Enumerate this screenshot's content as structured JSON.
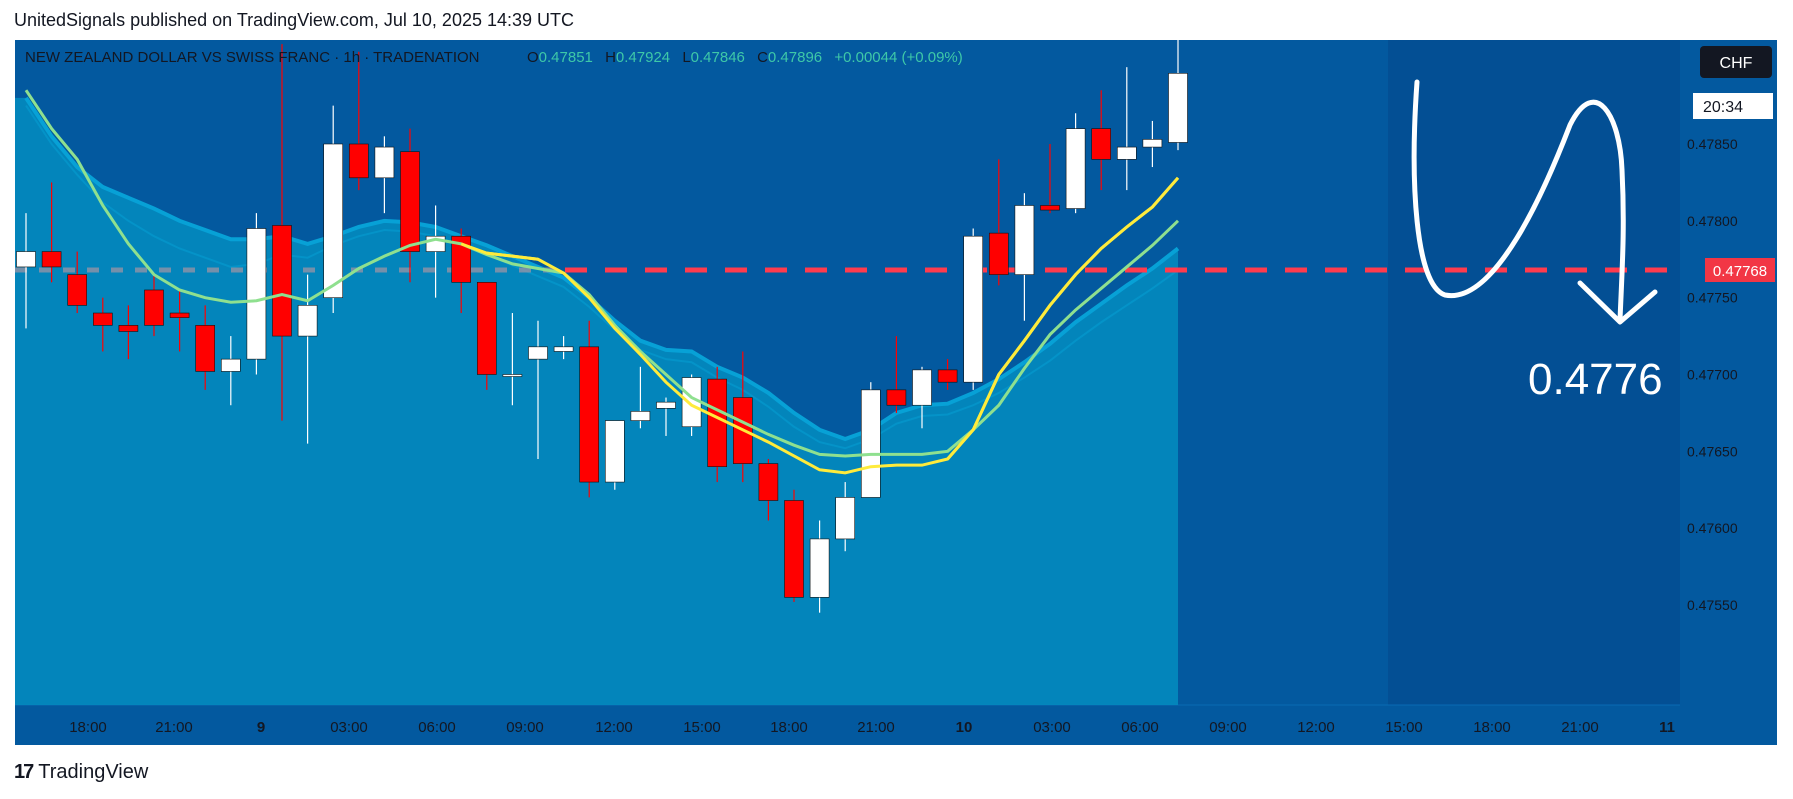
{
  "header": {
    "published": "UnitedSignals published on TradingView.com, Jul 10, 2025 14:39 UTC"
  },
  "footer": {
    "logo_mark": "17",
    "logo_text": "TradingView"
  },
  "legend": {
    "symbol": "NEW ZEALAND DOLLAR VS SWISS FRANC · 1h · TRADENATION",
    "o_label": "O",
    "o_value": "0.47851",
    "h_label": "H",
    "h_value": "0.47924",
    "l_label": "L",
    "l_value": "0.47846",
    "c_label": "C",
    "c_value": "0.47896",
    "change": "+0.00044 (+0.09%)"
  },
  "price_axis": {
    "currency": "CHF",
    "countdown": "20:34",
    "current_price_label": "0.47768"
  },
  "annotation": {
    "target_label": "0.4776"
  },
  "colors": {
    "background": "#03599f",
    "up_candle": "#ffffff",
    "down_candle": "#ff0000",
    "ma_fast": "#ffeb3b",
    "ma_slow": "#8fe08f",
    "band_fill": "#0388bd",
    "level_line": "#ff3b4e"
  },
  "chart_data": {
    "type": "candlestick",
    "interval": "1h",
    "ylim": [
      0.4753,
      0.4792
    ],
    "y_ticks": [
      "0.47850",
      "0.47800",
      "0.47750",
      "0.47700",
      "0.47650",
      "0.47600",
      "0.47550"
    ],
    "x_ticks": [
      "18:00",
      "21:00",
      "9",
      "03:00",
      "06:00",
      "09:00",
      "12:00",
      "15:00",
      "18:00",
      "21:00",
      "10",
      "03:00",
      "06:00",
      "09:00",
      "12:00",
      "15:00",
      "18:00",
      "21:00",
      "11"
    ],
    "horizontal_level": 0.47768,
    "candles": [
      {
        "o": 0.4777,
        "h": 0.47805,
        "l": 0.4773,
        "c": 0.4778
      },
      {
        "o": 0.4778,
        "h": 0.47825,
        "l": 0.4776,
        "c": 0.4777
      },
      {
        "o": 0.47765,
        "h": 0.4778,
        "l": 0.4774,
        "c": 0.47745
      },
      {
        "o": 0.4774,
        "h": 0.4775,
        "l": 0.47715,
        "c": 0.47732
      },
      {
        "o": 0.47732,
        "h": 0.47745,
        "l": 0.4771,
        "c": 0.47728
      },
      {
        "o": 0.47755,
        "h": 0.47765,
        "l": 0.47725,
        "c": 0.47732
      },
      {
        "o": 0.4774,
        "h": 0.47755,
        "l": 0.47715,
        "c": 0.47737
      },
      {
        "o": 0.47732,
        "h": 0.47745,
        "l": 0.4769,
        "c": 0.47702
      },
      {
        "o": 0.47702,
        "h": 0.47725,
        "l": 0.4768,
        "c": 0.4771
      },
      {
        "o": 0.4771,
        "h": 0.47805,
        "l": 0.477,
        "c": 0.47795
      },
      {
        "o": 0.47797,
        "h": 0.47915,
        "l": 0.4767,
        "c": 0.47725
      },
      {
        "o": 0.47725,
        "h": 0.47765,
        "l": 0.47655,
        "c": 0.47745
      },
      {
        "o": 0.4775,
        "h": 0.47875,
        "l": 0.4774,
        "c": 0.4785
      },
      {
        "o": 0.4785,
        "h": 0.4791,
        "l": 0.4782,
        "c": 0.47828
      },
      {
        "o": 0.47828,
        "h": 0.47855,
        "l": 0.47805,
        "c": 0.47848
      },
      {
        "o": 0.47845,
        "h": 0.4786,
        "l": 0.4776,
        "c": 0.4778
      },
      {
        "o": 0.4778,
        "h": 0.4781,
        "l": 0.4775,
        "c": 0.4779
      },
      {
        "o": 0.4779,
        "h": 0.47795,
        "l": 0.4774,
        "c": 0.4776
      },
      {
        "o": 0.4776,
        "h": 0.4776,
        "l": 0.4769,
        "c": 0.477
      },
      {
        "o": 0.477,
        "h": 0.4774,
        "l": 0.4768,
        "c": 0.477
      },
      {
        "o": 0.4771,
        "h": 0.47735,
        "l": 0.47645,
        "c": 0.47718
      },
      {
        "o": 0.47715,
        "h": 0.47725,
        "l": 0.4771,
        "c": 0.47718
      },
      {
        "o": 0.47718,
        "h": 0.47735,
        "l": 0.4762,
        "c": 0.4763
      },
      {
        "o": 0.4763,
        "h": 0.4767,
        "l": 0.47625,
        "c": 0.4767
      },
      {
        "o": 0.4767,
        "h": 0.47705,
        "l": 0.47665,
        "c": 0.47676
      },
      {
        "o": 0.47678,
        "h": 0.47685,
        "l": 0.4766,
        "c": 0.47682
      },
      {
        "o": 0.47666,
        "h": 0.477,
        "l": 0.4766,
        "c": 0.47698
      },
      {
        "o": 0.47697,
        "h": 0.47705,
        "l": 0.4763,
        "c": 0.4764
      },
      {
        "o": 0.47685,
        "h": 0.47715,
        "l": 0.4763,
        "c": 0.47642
      },
      {
        "o": 0.47642,
        "h": 0.47645,
        "l": 0.47605,
        "c": 0.47618
      },
      {
        "o": 0.47618,
        "h": 0.47625,
        "l": 0.47552,
        "c": 0.47555
      },
      {
        "o": 0.47555,
        "h": 0.47605,
        "l": 0.47545,
        "c": 0.47593
      },
      {
        "o": 0.47593,
        "h": 0.4763,
        "l": 0.47585,
        "c": 0.4762
      },
      {
        "o": 0.4762,
        "h": 0.47695,
        "l": 0.4762,
        "c": 0.4769
      },
      {
        "o": 0.4769,
        "h": 0.47725,
        "l": 0.47675,
        "c": 0.4768
      },
      {
        "o": 0.4768,
        "h": 0.47705,
        "l": 0.47665,
        "c": 0.47703
      },
      {
        "o": 0.47703,
        "h": 0.4771,
        "l": 0.4769,
        "c": 0.47695
      },
      {
        "o": 0.47695,
        "h": 0.47795,
        "l": 0.4769,
        "c": 0.4779
      },
      {
        "o": 0.47792,
        "h": 0.4784,
        "l": 0.47758,
        "c": 0.47765
      },
      {
        "o": 0.47765,
        "h": 0.47818,
        "l": 0.47735,
        "c": 0.4781
      },
      {
        "o": 0.4781,
        "h": 0.4785,
        "l": 0.47805,
        "c": 0.47807
      },
      {
        "o": 0.47808,
        "h": 0.4787,
        "l": 0.47805,
        "c": 0.4786
      },
      {
        "o": 0.4786,
        "h": 0.47885,
        "l": 0.4782,
        "c": 0.4784
      },
      {
        "o": 0.4784,
        "h": 0.479,
        "l": 0.4782,
        "c": 0.47848
      },
      {
        "o": 0.47848,
        "h": 0.47865,
        "l": 0.47835,
        "c": 0.47853
      },
      {
        "o": 0.47851,
        "h": 0.47924,
        "l": 0.47846,
        "c": 0.47896
      }
    ],
    "ma_fast": [
      0.47886,
      0.4787,
      0.47852,
      0.47824,
      0.47797,
      0.47772,
      0.47757,
      0.47751,
      0.47748,
      0.47749,
      0.47752,
      0.47748,
      0.47758,
      0.47769,
      0.47777,
      0.47784,
      0.47788,
      0.47785,
      0.47779,
      0.47777,
      0.47775,
      0.47766,
      0.4775,
      0.4773,
      0.47713,
      0.47695,
      0.4768,
      0.47672,
      0.47664,
      0.47656,
      0.47647,
      0.47638,
      0.47636,
      0.4764,
      0.47641,
      0.47641,
      0.47645,
      0.47664,
      0.477,
      0.47722,
      0.47745,
      0.47765,
      0.47782,
      0.47796,
      0.47809,
      0.47828
    ],
    "ma_slow": [
      0.47885,
      0.4786,
      0.4784,
      0.4781,
      0.47785,
      0.47765,
      0.47755,
      0.4775,
      0.47747,
      0.47748,
      0.47752,
      0.47748,
      0.47758,
      0.47769,
      0.47777,
      0.47784,
      0.47788,
      0.47785,
      0.47778,
      0.47772,
      0.47769,
      0.47766,
      0.47752,
      0.47732,
      0.47715,
      0.477,
      0.47685,
      0.47677,
      0.47669,
      0.47661,
      0.47654,
      0.47648,
      0.47647,
      0.47648,
      0.47648,
      0.47648,
      0.4765,
      0.47664,
      0.4768,
      0.47704,
      0.47726,
      0.47742,
      0.47756,
      0.4777,
      0.47784,
      0.478
    ],
    "band_top": [
      0.4788,
      0.47855,
      0.47835,
      0.47822,
      0.47815,
      0.47808,
      0.478,
      0.47794,
      0.47788,
      0.47788,
      0.4779,
      0.47785,
      0.4779,
      0.47796,
      0.478,
      0.47799,
      0.47796,
      0.4779,
      0.47784,
      0.47777,
      0.4777,
      0.47763,
      0.4775,
      0.47735,
      0.47722,
      0.47716,
      0.47715,
      0.47705,
      0.47698,
      0.47688,
      0.47675,
      0.47664,
      0.47658,
      0.47664,
      0.47675,
      0.4768,
      0.47681,
      0.47688,
      0.47697,
      0.47708,
      0.4772,
      0.47734,
      0.47746,
      0.47758,
      0.47769,
      0.47782
    ],
    "band_bottom": [
      0.47875,
      0.4785,
      0.4783,
      0.47812,
      0.478,
      0.4779,
      0.47782,
      0.47776,
      0.4777,
      0.47772,
      0.47778,
      0.47776,
      0.47784,
      0.4779,
      0.47794,
      0.47793,
      0.4779,
      0.47784,
      0.47778,
      0.47771,
      0.47764,
      0.47757,
      0.47744,
      0.47729,
      0.47716,
      0.4771,
      0.47708,
      0.47698,
      0.4769,
      0.47679,
      0.47666,
      0.47656,
      0.47652,
      0.47658,
      0.47668,
      0.47673,
      0.47674,
      0.4768,
      0.47688,
      0.47698,
      0.47709,
      0.47722,
      0.47734,
      0.47745,
      0.47756,
      0.47768
    ]
  }
}
